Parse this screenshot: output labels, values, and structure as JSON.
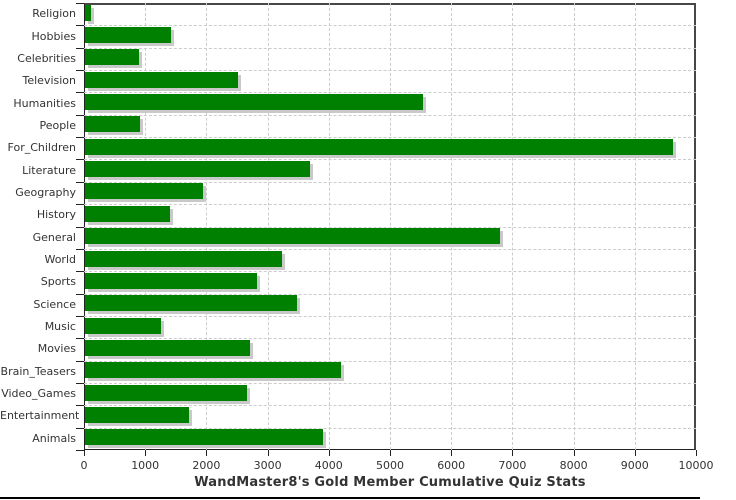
{
  "title": "WandMaster8's Gold Member Cumulative Quiz Stats",
  "colors": {
    "bar_fill": "#008000",
    "bar_shadow": "#c9c9c9",
    "gridline": "#cccccc",
    "plot_border": "#474747",
    "axis": "#222222",
    "text": "#333333",
    "background": "#ffffff",
    "bottom_rule": "#000000"
  },
  "chart_data": {
    "type": "bar",
    "orientation": "horizontal",
    "title": "WandMaster8's Gold Member Cumulative Quiz Stats",
    "xlabel": "",
    "ylabel": "",
    "categories": [
      "Religion",
      "Hobbies",
      "Celebrities",
      "Television",
      "Humanities",
      "People",
      "For_Children",
      "Literature",
      "Geography",
      "History",
      "General",
      "World",
      "Sports",
      "Science",
      "Music",
      "Movies",
      "Brain_Teasers",
      "Video_Games",
      "Entertainment",
      "Animals"
    ],
    "values": [
      110,
      1420,
      900,
      2520,
      5540,
      910,
      9620,
      3700,
      1940,
      1400,
      6800,
      3230,
      2820,
      3480,
      1260,
      2720,
      4200,
      2670,
      1720,
      3900
    ],
    "xlim": [
      0,
      10000
    ],
    "x_tick_values": [
      0,
      1000,
      2000,
      3000,
      4000,
      5000,
      6000,
      7000,
      8000,
      9000,
      10000
    ],
    "x_tick_labels": [
      "0",
      "1000",
      "2000",
      "3000",
      "4000",
      "5000",
      "6000",
      "7000",
      "8000",
      "9000",
      "10000"
    ],
    "grid": true,
    "grid_style": "dashed",
    "legend": false
  }
}
